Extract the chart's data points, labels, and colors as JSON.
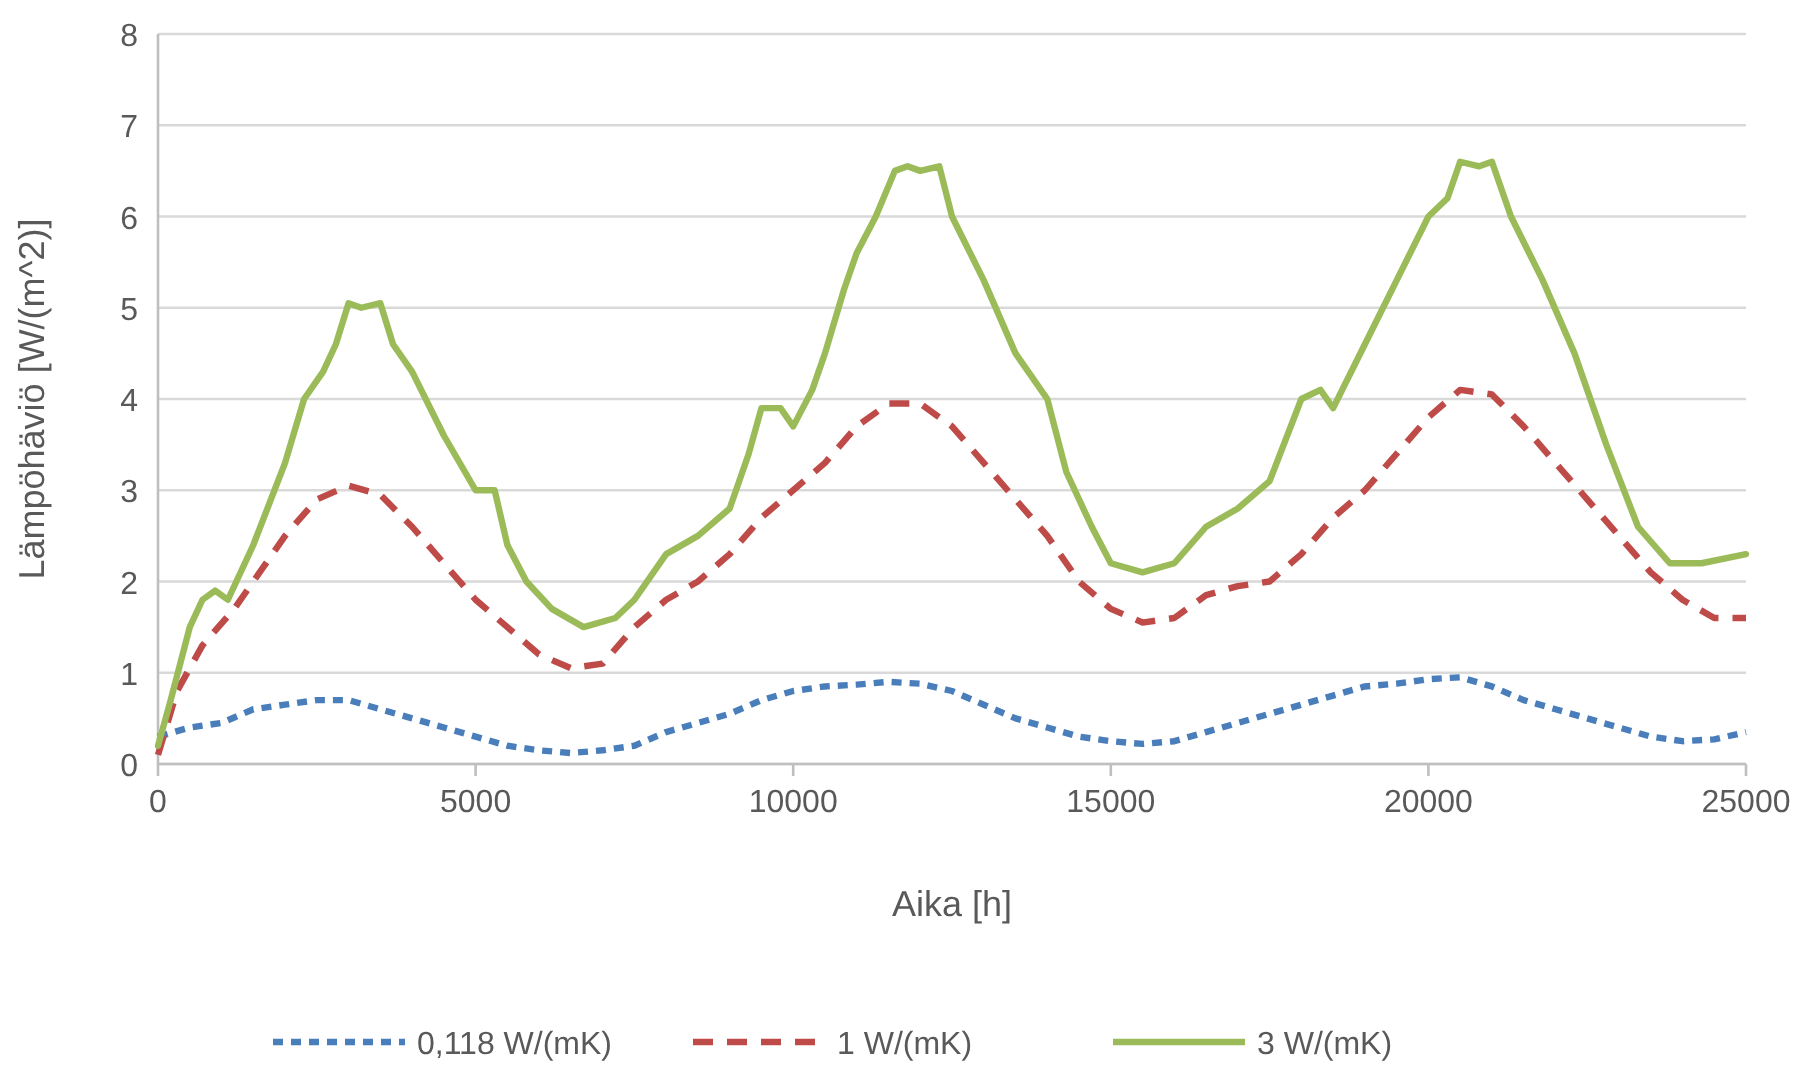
{
  "chart_data": {
    "type": "line",
    "xlabel": "Aika [h]",
    "ylabel": "Lämpöhäviö [W/(m^2)]",
    "xlim": [
      0,
      25000
    ],
    "xticks": [
      0,
      5000,
      10000,
      15000,
      20000,
      25000
    ],
    "ylim": [
      0,
      8
    ],
    "yticks": [
      0,
      1,
      2,
      3,
      4,
      5,
      6,
      7,
      8
    ],
    "grid": "y",
    "legend": "bottom",
    "series": [
      {
        "name": "0,118 W/(mK)",
        "color": "#4a7ebb",
        "line_style": "dotted",
        "x": [
          0,
          500,
          1000,
          1500,
          2000,
          2500,
          3000,
          3500,
          4000,
          4500,
          5000,
          5500,
          6000,
          6500,
          7000,
          7500,
          8000,
          8500,
          9000,
          9500,
          10000,
          10500,
          11000,
          11500,
          12000,
          12500,
          13000,
          13500,
          14000,
          14500,
          15000,
          15500,
          16000,
          16500,
          17000,
          17500,
          18000,
          18500,
          19000,
          19500,
          20000,
          20500,
          21000,
          21500,
          22000,
          22500,
          23000,
          23500,
          24000,
          24500,
          25000
        ],
        "values": [
          0.3,
          0.4,
          0.45,
          0.6,
          0.65,
          0.7,
          0.7,
          0.6,
          0.5,
          0.4,
          0.3,
          0.2,
          0.15,
          0.12,
          0.15,
          0.2,
          0.35,
          0.45,
          0.55,
          0.7,
          0.8,
          0.85,
          0.87,
          0.9,
          0.88,
          0.8,
          0.65,
          0.5,
          0.4,
          0.3,
          0.25,
          0.22,
          0.25,
          0.35,
          0.45,
          0.55,
          0.65,
          0.75,
          0.85,
          0.88,
          0.93,
          0.95,
          0.85,
          0.7,
          0.6,
          0.5,
          0.4,
          0.3,
          0.25,
          0.27,
          0.35
        ]
      },
      {
        "name": "1 W/(mK)",
        "color": "#be4b48",
        "line_style": "dashed",
        "x": [
          0,
          300,
          700,
          1200,
          2000,
          2500,
          3000,
          3500,
          4000,
          4500,
          5000,
          5500,
          6000,
          6500,
          7000,
          7500,
          8000,
          8500,
          9000,
          9500,
          10000,
          10500,
          11000,
          11500,
          12000,
          12500,
          13000,
          13500,
          14000,
          14500,
          15000,
          15500,
          16000,
          16500,
          17000,
          17500,
          18000,
          18500,
          19000,
          19500,
          20000,
          20500,
          21000,
          21500,
          22000,
          22500,
          23000,
          23500,
          24000,
          24500,
          25000
        ],
        "values": [
          0.1,
          0.8,
          1.3,
          1.7,
          2.5,
          2.9,
          3.05,
          2.95,
          2.6,
          2.2,
          1.8,
          1.5,
          1.2,
          1.05,
          1.1,
          1.5,
          1.8,
          2.0,
          2.3,
          2.7,
          3.0,
          3.3,
          3.7,
          3.95,
          3.95,
          3.7,
          3.3,
          2.9,
          2.5,
          2.0,
          1.7,
          1.55,
          1.6,
          1.85,
          1.95,
          2.0,
          2.3,
          2.7,
          3.0,
          3.4,
          3.8,
          4.1,
          4.05,
          3.7,
          3.3,
          2.9,
          2.5,
          2.1,
          1.8,
          1.6,
          1.6
        ]
      },
      {
        "name": "3 W/(mK)",
        "color": "#9bbb59",
        "line_style": "solid",
        "x": [
          0,
          200,
          500,
          700,
          900,
          1100,
          1500,
          2000,
          2300,
          2600,
          2800,
          3000,
          3200,
          3500,
          3700,
          4000,
          4500,
          5000,
          5300,
          5500,
          5800,
          6200,
          6700,
          7200,
          7500,
          8000,
          8500,
          9000,
          9300,
          9500,
          9800,
          10000,
          10300,
          10500,
          10800,
          11000,
          11300,
          11600,
          11800,
          12000,
          12300,
          12500,
          13000,
          13500,
          14000,
          14300,
          14700,
          15000,
          15500,
          16000,
          16500,
          17000,
          17500,
          18000,
          18300,
          18500,
          19000,
          19500,
          20000,
          20300,
          20500,
          20800,
          21000,
          21300,
          21800,
          22300,
          22800,
          23300,
          23800,
          24300,
          25000
        ],
        "values": [
          0.2,
          0.7,
          1.5,
          1.8,
          1.9,
          1.8,
          2.4,
          3.3,
          4.0,
          4.3,
          4.6,
          5.05,
          5.0,
          5.05,
          4.6,
          4.3,
          3.6,
          3.0,
          3.0,
          2.4,
          2.0,
          1.7,
          1.5,
          1.6,
          1.8,
          2.3,
          2.5,
          2.8,
          3.4,
          3.9,
          3.9,
          3.7,
          4.1,
          4.5,
          5.2,
          5.6,
          6.0,
          6.5,
          6.55,
          6.5,
          6.55,
          6.0,
          5.3,
          4.5,
          4.0,
          3.2,
          2.6,
          2.2,
          2.1,
          2.2,
          2.6,
          2.8,
          3.1,
          4.0,
          4.1,
          3.9,
          4.6,
          5.3,
          6.0,
          6.2,
          6.6,
          6.55,
          6.6,
          6.0,
          5.3,
          4.5,
          3.5,
          2.6,
          2.2,
          2.2,
          2.3
        ]
      }
    ]
  }
}
